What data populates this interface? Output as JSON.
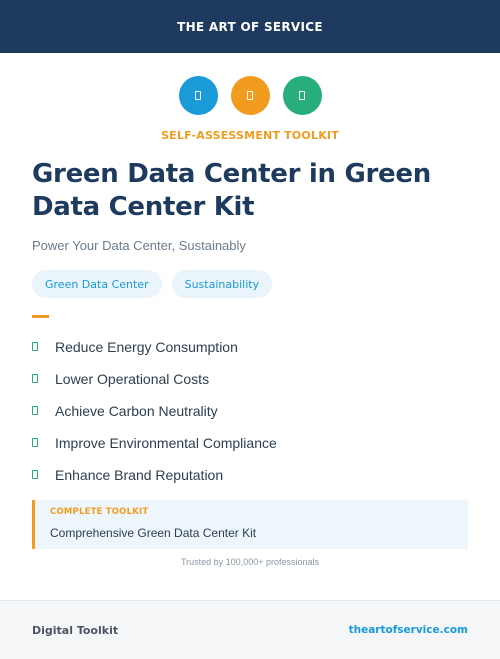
{
  "header": {
    "brand": "THE ART OF SERVICE"
  },
  "icons": [
    {
      "name": "blue-badge-icon",
      "color": "#1a9ad6"
    },
    {
      "name": "orange-badge-icon",
      "color": "#f29c1f"
    },
    {
      "name": "green-badge-icon",
      "color": "#27ae7a"
    }
  ],
  "kicker": "SELF-ASSESSMENT TOOLKIT",
  "title": "Green Data Center in Green Data Center Kit",
  "subtitle": "Power Your Data Center, Sustainably",
  "tags": [
    "Green Data Center",
    "Sustainability"
  ],
  "features": [
    "Reduce Energy Consumption",
    "Lower Operational Costs",
    "Achieve Carbon Neutrality",
    "Improve Environmental Compliance",
    "Enhance Brand Reputation"
  ],
  "toolkit": {
    "label": "COMPLETE TOOLKIT",
    "name": "Comprehensive Green Data Center Kit"
  },
  "trust": "Trusted by 100,000+ professionals",
  "footer": {
    "left": "Digital Toolkit",
    "right": "theartofservice.com"
  },
  "colors": {
    "navy": "#1e3a5f",
    "orange": "#f29c1f",
    "blue": "#1a9ad6",
    "green": "#27ae7a"
  }
}
